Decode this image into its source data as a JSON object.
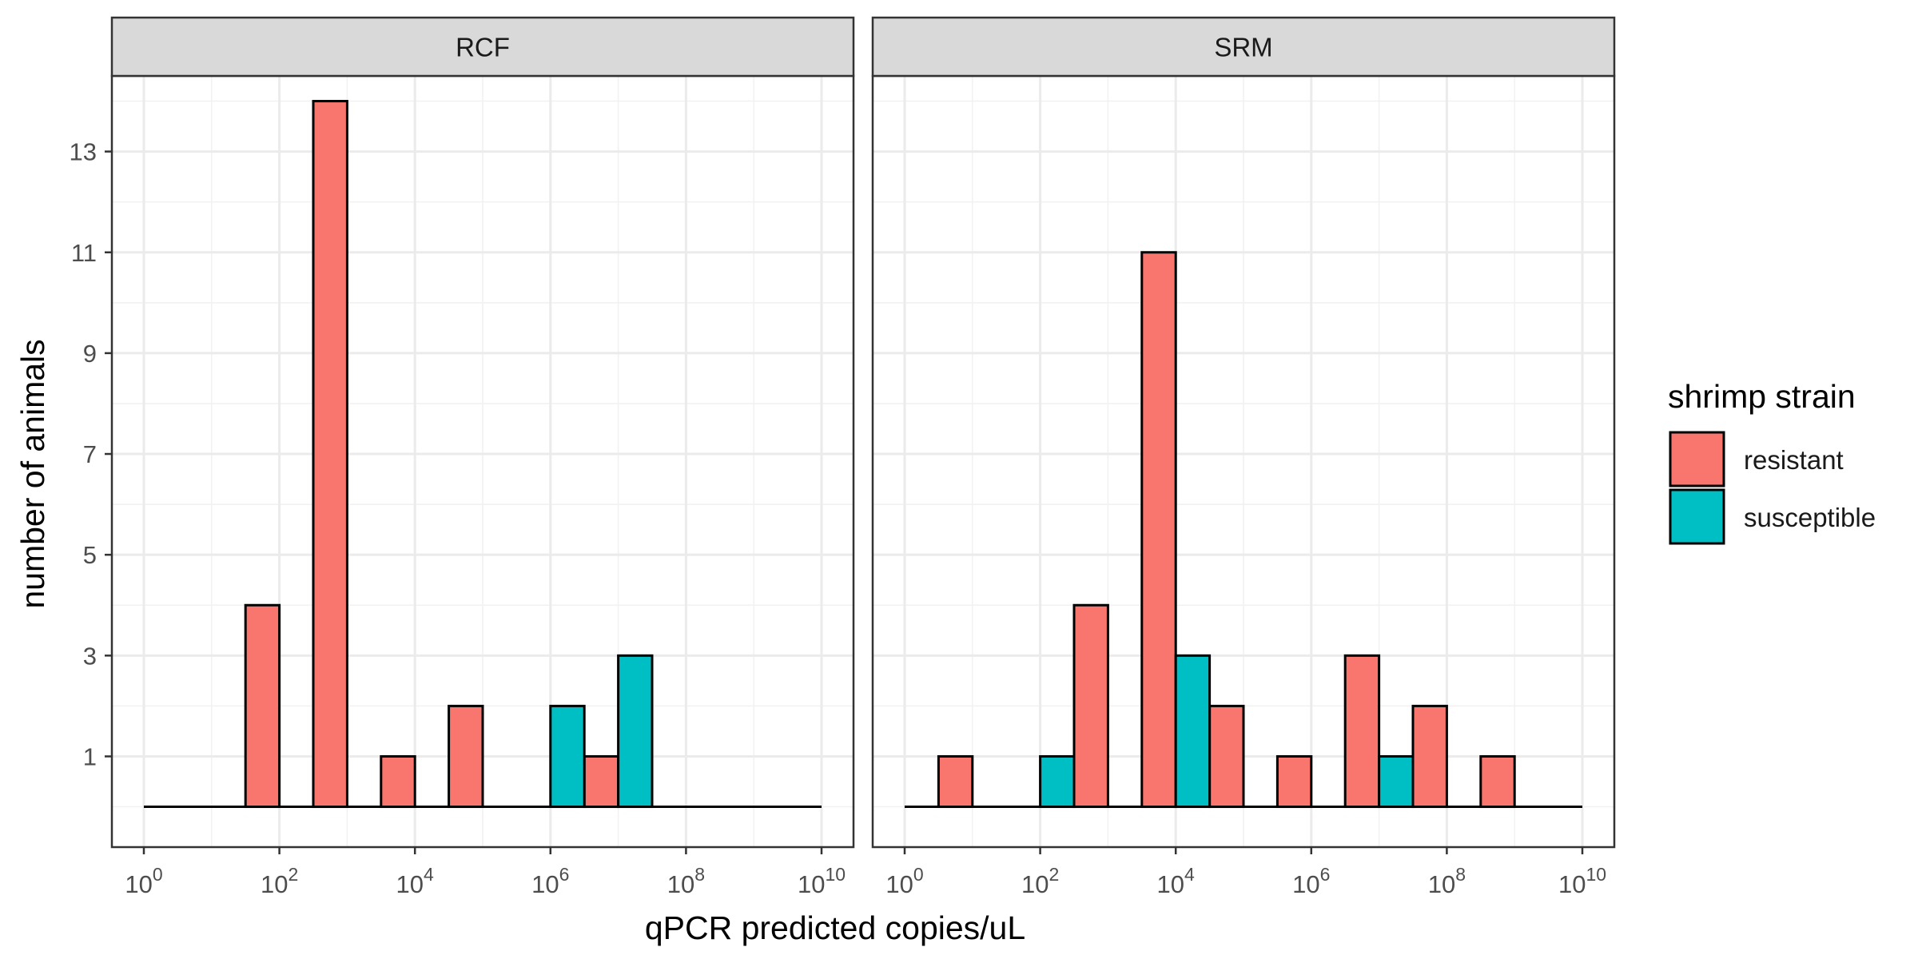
{
  "chart_data": {
    "type": "bar",
    "xlabel": "qPCR predicted copies/uL",
    "ylabel": "number of animals",
    "x_scale": "log10",
    "x_range": [
      0,
      10
    ],
    "x_ticks": [
      {
        "base": "10",
        "exp": "0"
      },
      {
        "base": "10",
        "exp": "2"
      },
      {
        "base": "10",
        "exp": "4"
      },
      {
        "base": "10",
        "exp": "6"
      },
      {
        "base": "10",
        "exp": "8"
      },
      {
        "base": "10",
        "exp": "10"
      }
    ],
    "y_range": [
      -0.8,
      14.5
    ],
    "y_ticks": [
      "1",
      "3",
      "5",
      "7",
      "9",
      "11",
      "13"
    ],
    "grid": true,
    "legend": {
      "title": "shrimp strain",
      "position": "right",
      "entries": [
        {
          "name": "resistant",
          "color": "#F8766D"
        },
        {
          "name": "susceptible",
          "color": "#00BFC4"
        }
      ]
    },
    "bin_width_log10": 1,
    "panels": [
      {
        "title": "RCF",
        "series": [
          {
            "name": "resistant",
            "bins": [
              [
                1.5,
                2,
                4
              ],
              [
                2.5,
                3,
                14
              ],
              [
                3.5,
                4,
                1
              ],
              [
                4.5,
                5,
                2
              ],
              [
                6.5,
                7,
                1
              ]
            ]
          },
          {
            "name": "susceptible",
            "bins": [
              [
                6,
                6.5,
                2
              ],
              [
                7,
                7.5,
                3
              ]
            ]
          }
        ]
      },
      {
        "title": "SRM",
        "series": [
          {
            "name": "resistant",
            "bins": [
              [
                0.5,
                1,
                1
              ],
              [
                2.5,
                3,
                4
              ],
              [
                3.5,
                4,
                11
              ],
              [
                4.5,
                5,
                2
              ],
              [
                5.5,
                6,
                1
              ],
              [
                6.5,
                7,
                3
              ],
              [
                7.5,
                8,
                2
              ],
              [
                8.5,
                9,
                1
              ]
            ]
          },
          {
            "name": "susceptible",
            "bins": [
              [
                2,
                2.5,
                1
              ],
              [
                4,
                4.5,
                3
              ],
              [
                7,
                7.5,
                1
              ]
            ]
          }
        ]
      }
    ]
  }
}
